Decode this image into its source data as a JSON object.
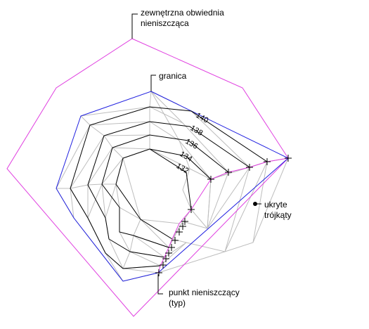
{
  "labels": {
    "outer_boundary": [
      "zewnętrzna obwiednia",
      "nieniszcząca"
    ],
    "boundary": "granica",
    "hidden_triangles": [
      "ukryte",
      "trójkąty"
    ],
    "nondestructive_point": [
      "punkt nieniszczący",
      "(typ)"
    ]
  },
  "contour_labels": [
    "140",
    "138",
    "136",
    "134",
    "132"
  ],
  "colors": {
    "background": "#ffffff",
    "contour": "#000000",
    "triangles": "#bdbdbd",
    "boundary": "#2020e0",
    "outer_boundary": "#e040e0",
    "text": "#000000"
  }
}
